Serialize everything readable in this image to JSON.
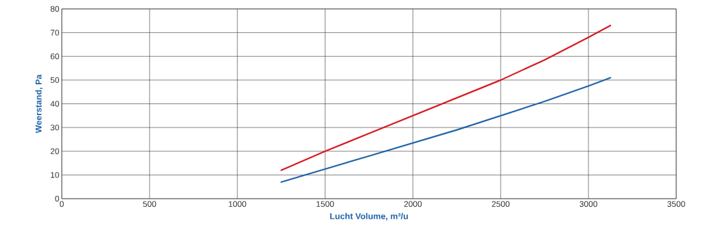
{
  "chart_data": {
    "type": "line",
    "xlabel": "Lucht Volume, m³/u",
    "ylabel": "Weerstand, Pa",
    "x": [
      1250,
      1500,
      1750,
      2000,
      2250,
      2500,
      2750,
      3000,
      3125
    ],
    "series": [
      {
        "color": "#d7191f",
        "values": [
          12,
          20,
          27.5,
          35,
          42.5,
          50,
          58.5,
          68,
          73
        ]
      },
      {
        "color": "#1f64a8",
        "values": [
          7,
          12.5,
          18,
          23.5,
          29,
          35,
          41,
          47.5,
          51
        ]
      }
    ],
    "xlim": [
      0,
      3500
    ],
    "ylim": [
      0,
      80
    ],
    "xticks": [
      0,
      500,
      1000,
      1500,
      2000,
      2500,
      3000,
      3500
    ],
    "yticks": [
      0,
      10,
      20,
      30,
      40,
      50,
      60,
      70,
      80
    ],
    "grid": true
  }
}
